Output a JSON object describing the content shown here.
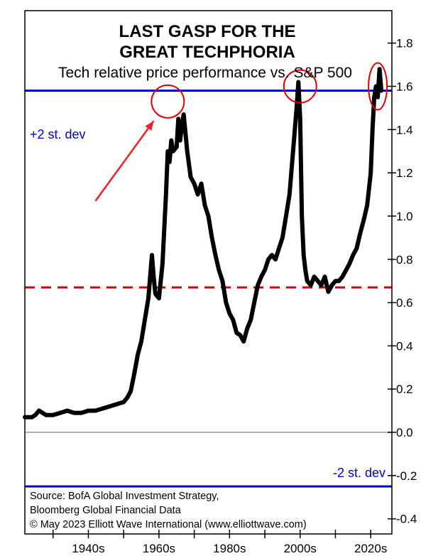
{
  "chart_data": {
    "type": "line",
    "title_lines": [
      "LAST GASP FOR THE",
      "GREAT TECHPHORIA"
    ],
    "subtitle": "Tech relative price performance vs. S&P 500",
    "xlabel": "",
    "ylabel": "",
    "xlim": [
      1922,
      2026
    ],
    "ylim": [
      -0.47,
      1.95
    ],
    "x_ticks": [
      1940,
      1960,
      1980,
      2000,
      2020
    ],
    "x_tick_labels": [
      "1940s",
      "1960s",
      "1980s",
      "2000s",
      "2020s"
    ],
    "y_ticks": [
      -0.4,
      -0.2,
      0.0,
      0.2,
      0.4,
      0.6,
      0.8,
      1.0,
      1.2,
      1.4,
      1.6,
      1.8
    ],
    "y_tick_labels": [
      "-0.4",
      "-0.2",
      "0.0",
      "0.2",
      "0.4",
      "0.6",
      "0.8",
      "1.0",
      "1.2",
      "1.4",
      "1.6",
      "1.8"
    ],
    "reference_lines": [
      {
        "value": 1.58,
        "label": "+2 st. dev",
        "color": "#0000cc",
        "style": "solid"
      },
      {
        "value": 0.67,
        "label": "",
        "color": "#dd0000",
        "style": "dashed"
      },
      {
        "value": 0.0,
        "label": "",
        "color": "#999999",
        "style": "solid"
      },
      {
        "value": -0.25,
        "label": "-2 st. dev",
        "color": "#0000cc",
        "style": "solid"
      }
    ],
    "highlight_circles": [
      {
        "x": 1962.5,
        "y": 1.53
      },
      {
        "x": 2000,
        "y": 1.6
      },
      {
        "x": 2022,
        "y": 1.6
      }
    ],
    "arrow": {
      "from": {
        "x": 1942,
        "y": 1.07
      },
      "to": {
        "x": 1958.5,
        "y": 1.44
      }
    },
    "series": [
      {
        "color": "#000000",
        "x": [
          1922,
          1924,
          1925,
          1926,
          1927,
          1928,
          1930,
          1932,
          1934,
          1936,
          1938,
          1940,
          1942,
          1944,
          1946,
          1948,
          1950,
          1951,
          1952,
          1953,
          1954,
          1955,
          1956,
          1957,
          1958,
          1958.5,
          1959,
          1960,
          1960.5,
          1961,
          1962,
          1962.5,
          1963,
          1963.5,
          1964,
          1965,
          1965.5,
          1966,
          1966.5,
          1967,
          1968,
          1969,
          1970,
          1971,
          1972,
          1973,
          1974,
          1975,
          1976,
          1977,
          1978,
          1979,
          1980,
          1981,
          1982,
          1983,
          1984,
          1985,
          1986,
          1987,
          1988,
          1989,
          1990,
          1991,
          1992,
          1993,
          1994,
          1995,
          1996,
          1997,
          1998,
          1999,
          1999.5,
          2000,
          2000.5,
          2001,
          2001.5,
          2002,
          2003,
          2004,
          2005,
          2006,
          2007,
          2008,
          2009,
          2010,
          2011,
          2012,
          2013,
          2014,
          2015,
          2016,
          2017,
          2018,
          2019,
          2020,
          2020.5,
          2021,
          2021.5,
          2022,
          2022.5,
          2023
        ],
        "y": [
          0.07,
          0.07,
          0.08,
          0.1,
          0.09,
          0.08,
          0.08,
          0.09,
          0.1,
          0.09,
          0.09,
          0.1,
          0.1,
          0.11,
          0.12,
          0.13,
          0.14,
          0.16,
          0.19,
          0.27,
          0.36,
          0.42,
          0.52,
          0.62,
          0.82,
          0.72,
          0.64,
          0.62,
          0.7,
          0.78,
          1.1,
          1.3,
          1.25,
          1.35,
          1.3,
          1.32,
          1.45,
          1.35,
          1.42,
          1.47,
          1.3,
          1.18,
          1.15,
          1.1,
          1.15,
          1.05,
          1.0,
          0.9,
          0.82,
          0.75,
          0.7,
          0.6,
          0.55,
          0.52,
          0.46,
          0.45,
          0.42,
          0.48,
          0.52,
          0.6,
          0.68,
          0.72,
          0.75,
          0.8,
          0.82,
          0.8,
          0.85,
          0.9,
          1.0,
          1.1,
          1.3,
          1.5,
          1.62,
          1.45,
          1.0,
          0.82,
          0.75,
          0.7,
          0.68,
          0.72,
          0.7,
          0.68,
          0.72,
          0.65,
          0.68,
          0.7,
          0.7,
          0.72,
          0.75,
          0.78,
          0.82,
          0.85,
          0.92,
          0.98,
          1.05,
          1.2,
          1.4,
          1.55,
          1.6,
          1.55,
          1.68,
          1.58
        ]
      }
    ]
  },
  "source_lines": [
    "Source: BofA Global Investment Strategy,",
    "Bloomberg Global Financial Data",
    "© May 2023 Elliott Wave International (www.elliottwave.com)"
  ],
  "colors": {
    "frame": "#000000",
    "series": "#000000",
    "circle": "#dd0000",
    "arrow": "#ee2222",
    "blue_line": "#0000cc"
  }
}
